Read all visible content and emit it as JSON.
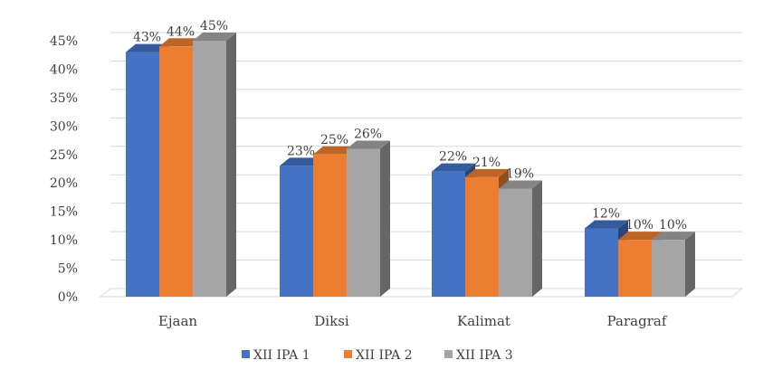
{
  "chart_data": {
    "type": "bar",
    "categories": [
      "Ejaan",
      "Diksi",
      "Kalimat",
      "Paragraf"
    ],
    "series": [
      {
        "name": "XII IPA 1",
        "values": [
          43,
          23,
          22,
          12
        ],
        "color": "#4472C4",
        "labels": [
          "43%",
          "23%",
          "22%",
          "12%"
        ]
      },
      {
        "name": "XII IPA 2",
        "values": [
          44,
          25,
          21,
          10
        ],
        "color": "#ED7D31",
        "labels": [
          "44%",
          "25%",
          "21%",
          "10%"
        ]
      },
      {
        "name": "XII IPA 3",
        "values": [
          45,
          26,
          19,
          10
        ],
        "color": "#A5A5A5",
        "labels": [
          "45%",
          "26%",
          "19%",
          "10%"
        ]
      }
    ],
    "yticks": [
      "0%",
      "5%",
      "10%",
      "15%",
      "20%",
      "25%",
      "30%",
      "35%",
      "40%",
      "45%"
    ],
    "ylim": [
      0,
      45
    ],
    "grid": true,
    "legend": "bottom",
    "style": "3d-clustered-column"
  }
}
